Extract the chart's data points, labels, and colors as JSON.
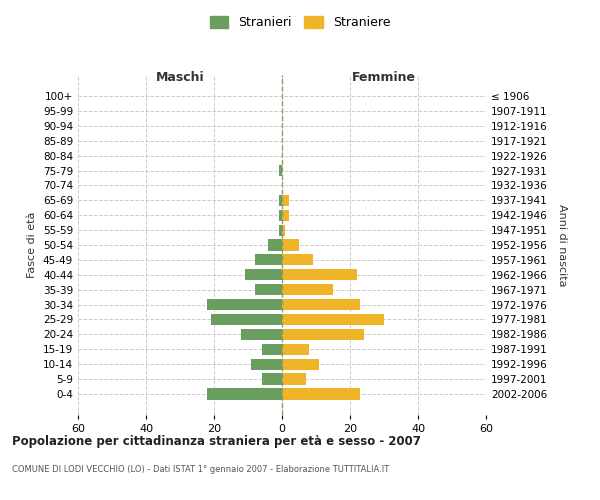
{
  "age_groups": [
    "0-4",
    "5-9",
    "10-14",
    "15-19",
    "20-24",
    "25-29",
    "30-34",
    "35-39",
    "40-44",
    "45-49",
    "50-54",
    "55-59",
    "60-64",
    "65-69",
    "70-74",
    "75-79",
    "80-84",
    "85-89",
    "90-94",
    "95-99",
    "100+"
  ],
  "birth_years": [
    "2002-2006",
    "1997-2001",
    "1992-1996",
    "1987-1991",
    "1982-1986",
    "1977-1981",
    "1972-1976",
    "1967-1971",
    "1962-1966",
    "1957-1961",
    "1952-1956",
    "1947-1951",
    "1942-1946",
    "1937-1941",
    "1932-1936",
    "1927-1931",
    "1922-1926",
    "1917-1921",
    "1912-1916",
    "1907-1911",
    "≤ 1906"
  ],
  "males": [
    22,
    6,
    9,
    6,
    12,
    21,
    22,
    8,
    11,
    8,
    4,
    1,
    1,
    1,
    0,
    1,
    0,
    0,
    0,
    0,
    0
  ],
  "females": [
    23,
    7,
    11,
    8,
    24,
    30,
    23,
    15,
    22,
    9,
    5,
    1,
    2,
    2,
    0,
    0,
    0,
    0,
    0,
    0,
    0
  ],
  "male_color": "#6a9e5e",
  "female_color": "#f0b429",
  "background_color": "#ffffff",
  "grid_color": "#cccccc",
  "title": "Popolazione per cittadinanza straniera per età e sesso - 2007",
  "subtitle": "COMUNE DI LODI VECCHIO (LO) - Dati ISTAT 1° gennaio 2007 - Elaborazione TUTTITALIA.IT",
  "xlabel_left": "Maschi",
  "xlabel_right": "Femmine",
  "ylabel_left": "Fasce di età",
  "ylabel_right": "Anni di nascita",
  "xlim": 60,
  "legend_stranieri": "Stranieri",
  "legend_straniere": "Straniere"
}
